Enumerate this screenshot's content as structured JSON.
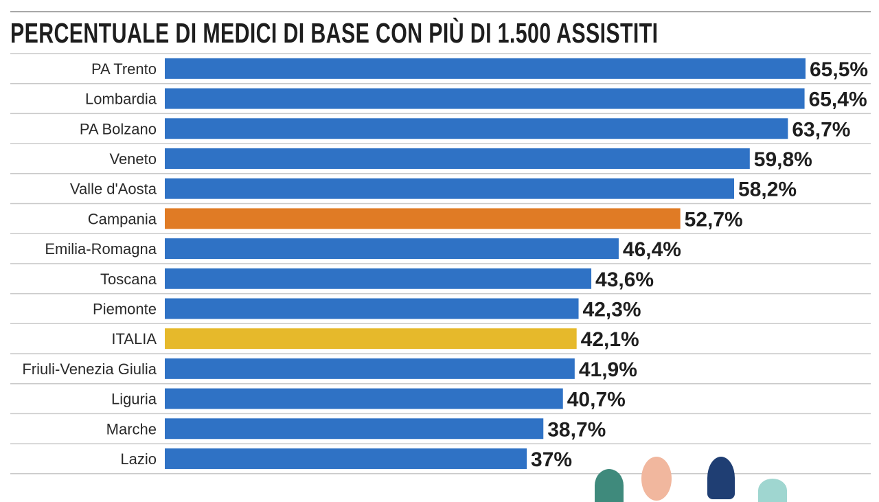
{
  "chart_data": {
    "type": "bar",
    "orientation": "horizontal",
    "title": "PERCENTUALE DI MEDICI DI BASE CON PIÙ DI 1.500 ASSISTITI",
    "categories": [
      "PA Trento",
      "Lombardia",
      "PA Bolzano",
      "Veneto",
      "Valle d'Aosta",
      "Campania",
      "Emilia-Romagna",
      "Toscana",
      "Piemonte",
      "ITALIA",
      "Friuli-Venezia Giulia",
      "Liguria",
      "Marche",
      "Lazio"
    ],
    "values": [
      65.5,
      65.4,
      63.7,
      59.8,
      58.2,
      52.7,
      46.4,
      43.6,
      42.3,
      42.1,
      41.9,
      40.7,
      38.7,
      37
    ],
    "value_labels": [
      "65,5%",
      "65,4%",
      "63,7%",
      "59,8%",
      "58,2%",
      "52,7%",
      "46,4%",
      "43,6%",
      "42,3%",
      "42,1%",
      "41,9%",
      "40,7%",
      "38,7%",
      "37%"
    ],
    "bar_colors": [
      "#2f72c5",
      "#2f72c5",
      "#2f72c5",
      "#2f72c5",
      "#2f72c5",
      "#e07b25",
      "#2f72c5",
      "#2f72c5",
      "#2f72c5",
      "#e6b92b",
      "#2f72c5",
      "#2f72c5",
      "#2f72c5",
      "#2f72c5"
    ],
    "xlim": [
      0,
      65.5
    ],
    "grid": false,
    "legend": "none",
    "row_separators": true
  },
  "colors": {
    "default_bar": "#2f72c5",
    "highlight_bar": "#e07b25",
    "national_bar": "#e6b92b",
    "separator": "#c9c9c9"
  }
}
